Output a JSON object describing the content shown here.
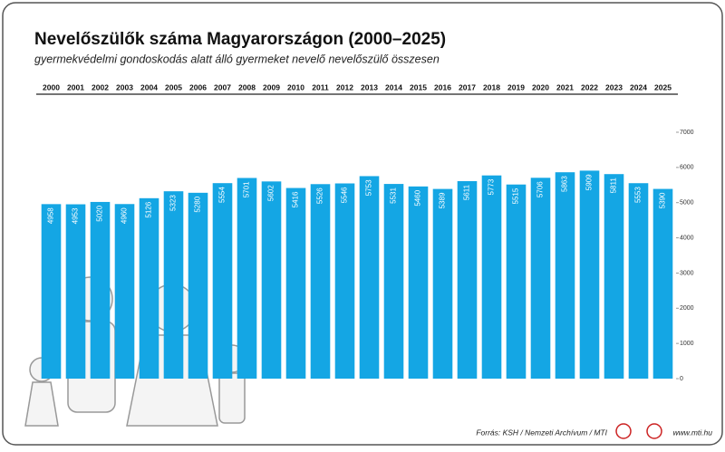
{
  "chart_data": {
    "type": "bar",
    "title": "Nevelőszülők száma Magyarországon (2000–2025)",
    "subtitle": "gyermekvédelmi gondoskodás alatt álló gyermeket nevelő nevelőszülő összesen",
    "categories": [
      "2000",
      "2001",
      "2002",
      "2003",
      "2004",
      "2005",
      "2006",
      "2007",
      "2008",
      "2009",
      "2010",
      "2011",
      "2012",
      "2013",
      "2014",
      "2015",
      "2016",
      "2017",
      "2018",
      "2019",
      "2020",
      "2021",
      "2022",
      "2023",
      "2024",
      "2025"
    ],
    "values": [
      4958,
      4953,
      5020,
      4960,
      5126,
      5323,
      5280,
      5554,
      5701,
      5602,
      5416,
      5526,
      5546,
      5753,
      5531,
      5460,
      5389,
      5611,
      5773,
      5515,
      5706,
      5863,
      5909,
      5811,
      5553,
      5390
    ],
    "color": "#14a6e4",
    "ylim": [
      0,
      7000
    ],
    "yticks": [
      0,
      1000,
      2000,
      3000,
      4000,
      5000,
      6000,
      7000
    ],
    "source": "Forrás: KSH / Nemzeti Archívum / MTI",
    "website": "www.mti.hu"
  }
}
